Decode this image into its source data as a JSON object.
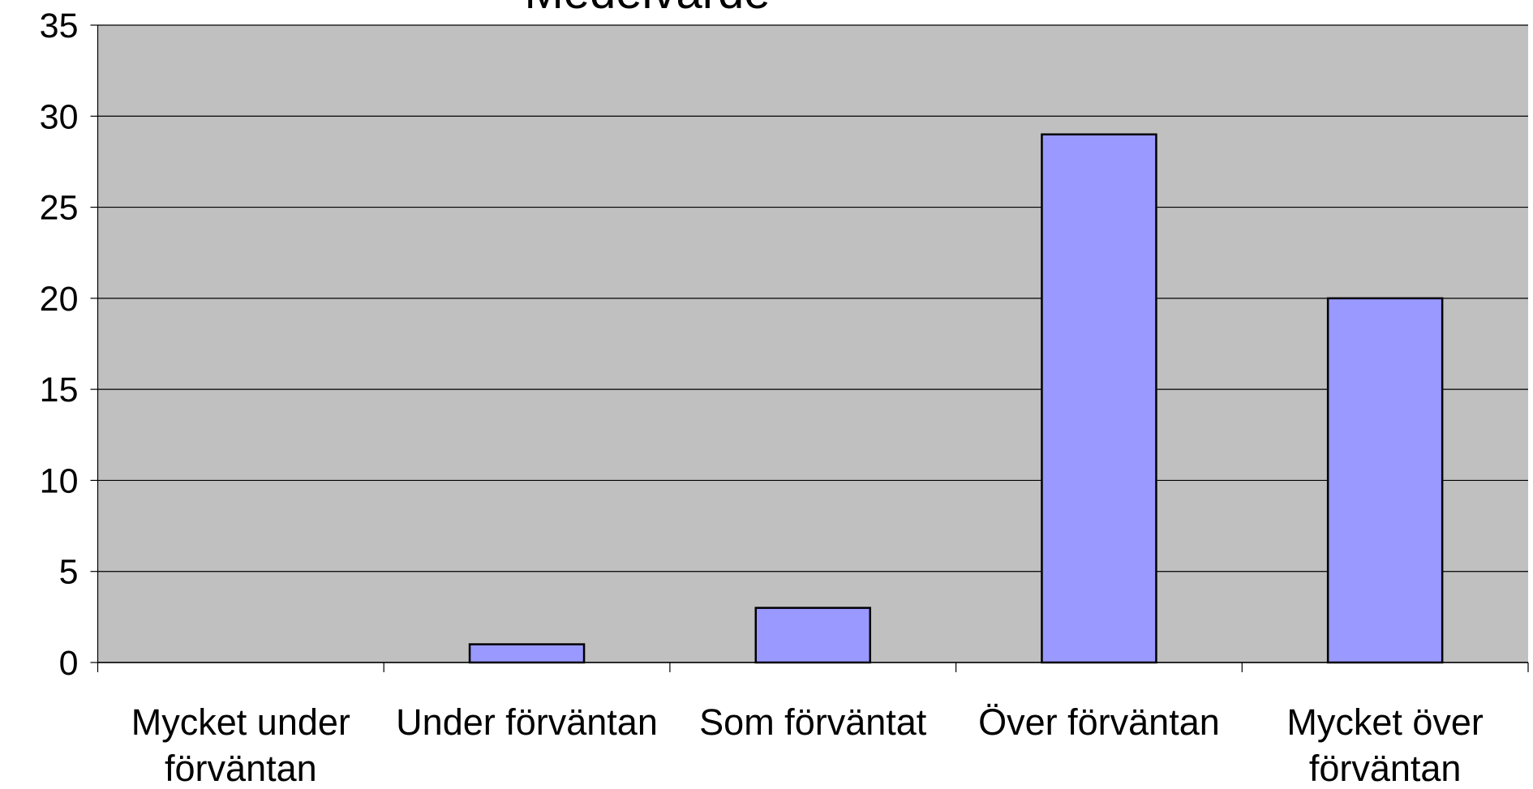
{
  "chart_data": {
    "type": "bar",
    "title": "Medelvärde",
    "categories": [
      "Mycket under förväntan",
      "Under förväntan",
      "Som förväntat",
      "Över förväntan",
      "Mycket över förväntan"
    ],
    "values": [
      0,
      1,
      3,
      29,
      20
    ],
    "color": "#9999ff",
    "ylim": [
      0,
      35
    ],
    "yticks": [
      0,
      5,
      10,
      15,
      20,
      25,
      30,
      35
    ],
    "grid": true
  }
}
